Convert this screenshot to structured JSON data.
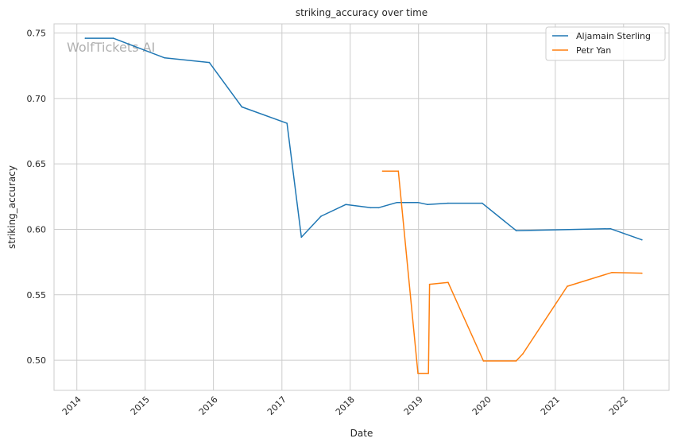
{
  "chart_data": {
    "type": "line",
    "title": "striking_accuracy over time",
    "xlabel": "Date",
    "ylabel": "striking_accuracy",
    "watermark": "WolfTickets AI",
    "xlim": [
      "2013-09-01",
      "2022-09-01"
    ],
    "ylim": [
      0.477,
      0.757
    ],
    "x_ticks": [
      {
        "date": "2014-01-01",
        "label": "2014"
      },
      {
        "date": "2015-01-01",
        "label": "2015"
      },
      {
        "date": "2016-01-01",
        "label": "2016"
      },
      {
        "date": "2017-01-01",
        "label": "2017"
      },
      {
        "date": "2018-01-01",
        "label": "2018"
      },
      {
        "date": "2019-01-01",
        "label": "2019"
      },
      {
        "date": "2020-01-01",
        "label": "2020"
      },
      {
        "date": "2021-01-01",
        "label": "2021"
      },
      {
        "date": "2022-01-01",
        "label": "2022"
      }
    ],
    "y_ticks": [
      {
        "value": 0.5,
        "label": "0.50"
      },
      {
        "value": 0.55,
        "label": "0.55"
      },
      {
        "value": 0.6,
        "label": "0.60"
      },
      {
        "value": 0.65,
        "label": "0.65"
      },
      {
        "value": 0.7,
        "label": "0.70"
      },
      {
        "value": 0.75,
        "label": "0.75"
      }
    ],
    "grid": true,
    "legend_position": "top-right",
    "series": [
      {
        "name": "Aljamain Sterling",
        "color": "#1f77b4",
        "points": [
          {
            "x": "2014-02-15",
            "y": 0.746
          },
          {
            "x": "2014-07-15",
            "y": 0.746
          },
          {
            "x": "2015-04-15",
            "y": 0.731
          },
          {
            "x": "2015-12-10",
            "y": 0.7275
          },
          {
            "x": "2016-06-01",
            "y": 0.6935
          },
          {
            "x": "2017-01-28",
            "y": 0.681
          },
          {
            "x": "2017-04-15",
            "y": 0.594
          },
          {
            "x": "2017-07-29",
            "y": 0.61
          },
          {
            "x": "2017-12-09",
            "y": 0.619
          },
          {
            "x": "2018-04-21",
            "y": 0.6165
          },
          {
            "x": "2018-06-01",
            "y": 0.6165
          },
          {
            "x": "2018-09-08",
            "y": 0.6205
          },
          {
            "x": "2018-12-29",
            "y": 0.6205
          },
          {
            "x": "2019-02-17",
            "y": 0.619
          },
          {
            "x": "2019-06-08",
            "y": 0.62
          },
          {
            "x": "2019-12-07",
            "y": 0.62
          },
          {
            "x": "2020-06-06",
            "y": 0.599
          },
          {
            "x": "2021-10-23",
            "y": 0.6005
          },
          {
            "x": "2022-04-09",
            "y": 0.592
          }
        ]
      },
      {
        "name": "Petr Yan",
        "color": "#ff7f0e",
        "points": [
          {
            "x": "2018-06-23",
            "y": 0.6445
          },
          {
            "x": "2018-09-15",
            "y": 0.6445
          },
          {
            "x": "2018-12-29",
            "y": 0.49
          },
          {
            "x": "2019-02-23",
            "y": 0.49
          },
          {
            "x": "2019-03-01",
            "y": 0.558
          },
          {
            "x": "2019-06-08",
            "y": 0.5595
          },
          {
            "x": "2019-12-14",
            "y": 0.4995
          },
          {
            "x": "2020-06-06",
            "y": 0.4995
          },
          {
            "x": "2020-07-12",
            "y": 0.505
          },
          {
            "x": "2021-03-06",
            "y": 0.5565
          },
          {
            "x": "2021-10-30",
            "y": 0.567
          },
          {
            "x": "2022-04-09",
            "y": 0.5665
          }
        ]
      }
    ]
  }
}
